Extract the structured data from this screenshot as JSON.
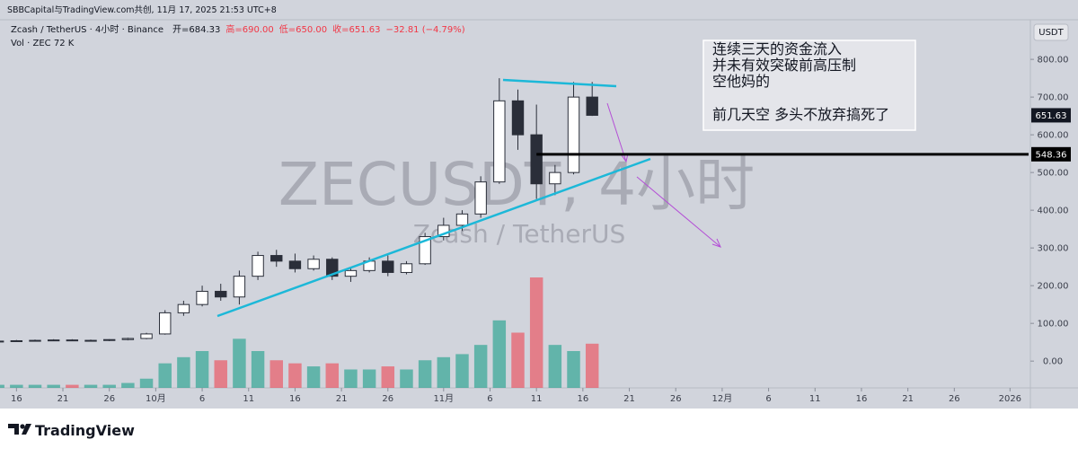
{
  "chart_data": {
    "type": "candlestick",
    "header": "SBBCapital与TradingView.com共创, 11月 17, 2025 21:53 UTC+8",
    "title": "Zcash / TetherUS · 4小时 · Binance",
    "ohlc_legend": [
      "开=684.33",
      "高=690.00",
      "低=650.00",
      "收=651.63",
      "−32.81 (−4.79%)"
    ],
    "volume_legend": "Vol · ZEC  72 K",
    "watermark": "ZECUSDT, 4小时",
    "watermark_sub": "Zcash / TetherUS",
    "currency": "USDT",
    "annotation": [
      "连续三天的资金流入",
      "并未有效突破前高压制",
      "空他妈的"
    ],
    "annotation_2": "前几天空 多头不放弃搞死了",
    "brand": "TradingView",
    "up_color": "#089981",
    "down_color": "#f23645",
    "x": [
      "09-14",
      "09-16",
      "09-18",
      "09-20",
      "09-22",
      "09-24",
      "09-26",
      "09-28",
      "09-30",
      "10-02",
      "10-04",
      "10-06",
      "10-08",
      "10-10",
      "10-12",
      "10-14",
      "10-16",
      "10-18",
      "10-20",
      "10-22",
      "10-24",
      "10-26",
      "10-28",
      "10-30",
      "11-01",
      "11-03",
      "11-05",
      "11-07",
      "11-09",
      "11-11",
      "11-13",
      "11-15",
      "11-17"
    ],
    "open": [
      52,
      53,
      54,
      55,
      56,
      54,
      55,
      57,
      60,
      72,
      128,
      150,
      185,
      170,
      225,
      280,
      265,
      245,
      270,
      225,
      240,
      265,
      235,
      258,
      330,
      360,
      390,
      475,
      690,
      600,
      470,
      500,
      700
    ],
    "high": [
      55,
      56,
      57,
      58,
      58,
      57,
      58,
      62,
      75,
      135,
      160,
      200,
      205,
      240,
      290,
      295,
      285,
      280,
      275,
      250,
      275,
      280,
      265,
      340,
      380,
      400,
      490,
      750,
      720,
      680,
      520,
      740,
      740
    ],
    "low": [
      50,
      51,
      52,
      53,
      53,
      52,
      53,
      55,
      58,
      70,
      120,
      145,
      160,
      150,
      215,
      250,
      235,
      240,
      215,
      210,
      235,
      225,
      230,
      255,
      320,
      345,
      380,
      470,
      560,
      430,
      440,
      495,
      650
    ],
    "close": [
      53,
      54,
      55,
      56,
      54,
      55,
      57,
      60,
      72,
      128,
      150,
      185,
      170,
      225,
      280,
      265,
      245,
      270,
      225,
      240,
      265,
      235,
      258,
      330,
      360,
      390,
      475,
      690,
      600,
      470,
      500,
      700,
      651.63
    ],
    "volume": [
      5,
      5,
      5,
      5,
      5,
      5,
      5,
      8,
      15,
      40,
      50,
      60,
      45,
      80,
      60,
      45,
      40,
      35,
      40,
      30,
      30,
      35,
      30,
      45,
      50,
      55,
      70,
      110,
      90,
      180,
      70,
      60,
      72
    ],
    "volume_ylim": [
      0,
      600
    ],
    "xlim": [
      "09-15",
      "01-03"
    ],
    "xticks": [
      {
        "value": "09-16",
        "label": "16"
      },
      {
        "value": "09-21",
        "label": "21"
      },
      {
        "value": "09-26",
        "label": "26"
      },
      {
        "value": "10-01",
        "label": "10月"
      },
      {
        "value": "10-06",
        "label": "6"
      },
      {
        "value": "10-11",
        "label": "11"
      },
      {
        "value": "10-16",
        "label": "16"
      },
      {
        "value": "10-21",
        "label": "21"
      },
      {
        "value": "10-26",
        "label": "26"
      },
      {
        "value": "11-01",
        "label": "11月"
      },
      {
        "value": "11-06",
        "label": "6"
      },
      {
        "value": "11-11",
        "label": "11"
      },
      {
        "value": "11-16",
        "label": "16"
      },
      {
        "value": "11-21",
        "label": "21"
      },
      {
        "value": "11-26",
        "label": "26"
      },
      {
        "value": "12-01",
        "label": "12月"
      },
      {
        "value": "12-06",
        "label": "6"
      },
      {
        "value": "12-11",
        "label": "11"
      },
      {
        "value": "12-16",
        "label": "16"
      },
      {
        "value": "12-21",
        "label": "21"
      },
      {
        "value": "12-26",
        "label": "26"
      },
      {
        "value": "01-01",
        "label": "2026"
      }
    ],
    "ylim": [
      -71,
      905
    ],
    "yticks": [
      {
        "value": 0,
        "label": "0.00"
      },
      {
        "value": 100,
        "label": "100.00"
      },
      {
        "value": 200,
        "label": "200.00"
      },
      {
        "value": 300,
        "label": "300.00"
      },
      {
        "value": 400,
        "label": "400.00"
      },
      {
        "value": 500,
        "label": "500.00"
      },
      {
        "value": 600,
        "label": "600.00"
      },
      {
        "value": 700,
        "label": "700.00"
      },
      {
        "value": 800,
        "label": "800.00"
      }
    ],
    "hline": {
      "value": 548.36,
      "color": "#000000"
    }
  }
}
